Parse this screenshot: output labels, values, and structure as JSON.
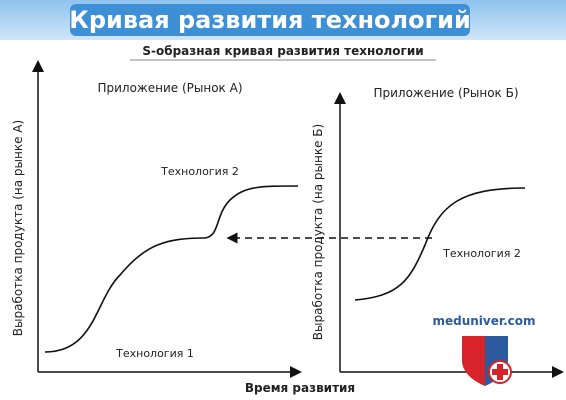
{
  "header": {
    "title": "Кривая развития технологий"
  },
  "diagram": {
    "subtitle": "S-образная кривая развития технологии",
    "panel_a": {
      "title": "Приложение (Рынок А)",
      "y_label": "Выработка продукта (на рынке А)",
      "curve_1_label": "Технология 1",
      "curve_2_label": "Технология 2"
    },
    "panel_b": {
      "title": "Приложение (Рынок Б)",
      "y_label": "Выработка продукта (на рынке Б)",
      "curve_label": "Технология 2"
    },
    "x_label": "Время развития"
  },
  "watermark": "meduniver.com"
}
